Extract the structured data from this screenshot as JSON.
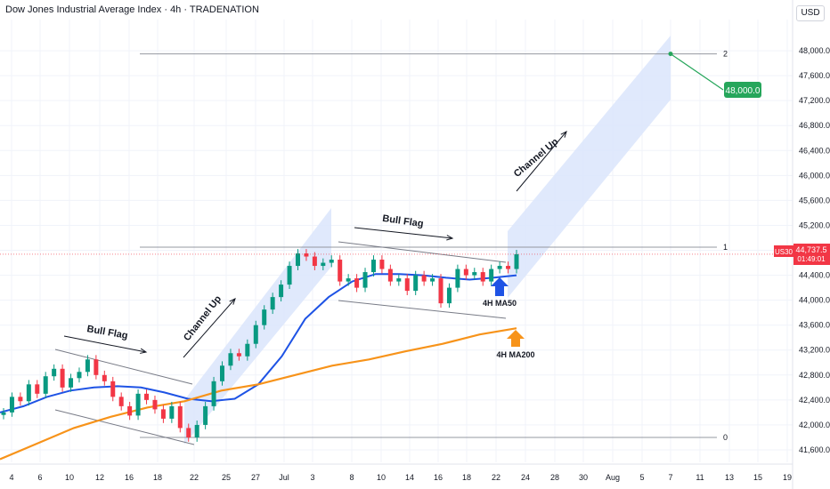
{
  "header": {
    "title": "Dow Jones Industrial Average Index · 4h · TRADENATION",
    "currency": "USD"
  },
  "chart_data": {
    "type": "line",
    "title": "Dow Jones Industrial Average Index · 4h · TRADENATION",
    "ylim": [
      41400,
      48500
    ],
    "y_ticks": [
      41600,
      42000,
      42400,
      42800,
      43200,
      43600,
      44000,
      44400,
      44800,
      45200,
      45600,
      46000,
      46400,
      46800,
      47200,
      47600,
      48000
    ],
    "y_tick_labels": [
      "41,600.0",
      "42,000.0",
      "42,400.0",
      "42,800.0",
      "43,200.0",
      "43,600.0",
      "44,000.0",
      "44,400.0",
      "44,800.0",
      "45,200.0",
      "45,600.0",
      "46,000.0",
      "46,400.0",
      "46,800.0",
      "47,200.0",
      "47,600.0",
      "48,000.0"
    ],
    "x_tick_labels": [
      "4",
      "6",
      "10",
      "12",
      "16",
      "18",
      "22",
      "25",
      "27",
      "Jul",
      "3",
      "8",
      "10",
      "14",
      "16",
      "18",
      "22",
      "24",
      "28",
      "30",
      "Aug",
      "5",
      "7",
      "11",
      "13",
      "15",
      "19"
    ],
    "grid": true,
    "price_series": {
      "name": "US30",
      "values": [
        42200,
        42450,
        42380,
        42650,
        42500,
        42780,
        42900,
        42600,
        42750,
        42850,
        43050,
        42800,
        42700,
        42450,
        42300,
        42150,
        42500,
        42400,
        42250,
        42100,
        42300,
        41950,
        41800,
        42000,
        42300,
        42700,
        42950,
        43150,
        43100,
        43300,
        43600,
        43850,
        44050,
        44250,
        44550,
        44750,
        44700,
        44550,
        44600,
        44650,
        44300,
        44350,
        44200,
        44450,
        44650,
        44500,
        44300,
        44350,
        44150,
        44400,
        44300,
        44350,
        43950,
        44200,
        44500,
        44400,
        44450,
        44300,
        44500,
        44550,
        44500,
        44737.5
      ]
    },
    "ma_series": [
      {
        "name": "4H MA50",
        "color": "#1e53e5",
        "values": [
          42200,
          42300,
          42450,
          42550,
          42600,
          42620,
          42600,
          42520,
          42420,
          42380,
          42420,
          42650,
          43100,
          43700,
          44050,
          44300,
          44420,
          44420,
          44400,
          44360,
          44330,
          44360,
          44400
        ]
      },
      {
        "name": "4H MA200",
        "color": "#f7931a",
        "values": [
          41450,
          41700,
          41950,
          42130,
          42280,
          42380,
          42550,
          42650,
          42800,
          42950,
          43050,
          43180,
          43300,
          43450,
          43550
        ]
      }
    ],
    "fib_levels": [
      {
        "label": "0",
        "value": 41800
      },
      {
        "label": "1",
        "value": 44850
      },
      {
        "label": "2",
        "value": 47950
      }
    ],
    "current_price": {
      "symbol": "US30",
      "value": "44,737.5",
      "countdown": "01:49:01"
    },
    "target": {
      "value": "48,000.0"
    },
    "annotations": [
      {
        "text": "Bull Flag"
      },
      {
        "text": "Channel Up"
      },
      {
        "text": "Bull Flag"
      },
      {
        "text": "Channel Up"
      },
      {
        "text": "4H MA50"
      },
      {
        "text": "4H MA200"
      }
    ],
    "colors": {
      "up": "#089981",
      "down": "#f23645",
      "channel": "#dbe5fb",
      "target_bg": "#26a65b",
      "price_bg": "#f23645"
    }
  }
}
